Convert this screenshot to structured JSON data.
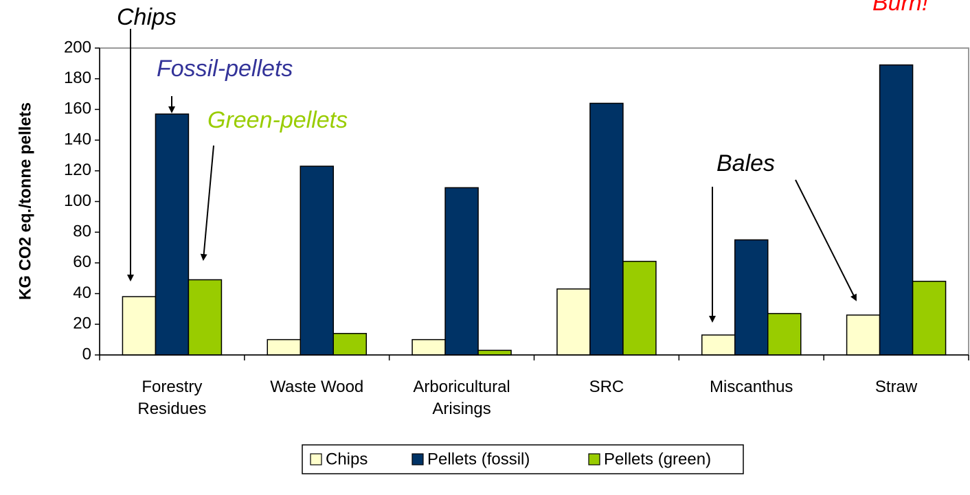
{
  "chart_data": {
    "type": "bar",
    "ylabel": "KG CO2 eq./tonne pellets",
    "categories": [
      "Forestry\nResidues",
      "Waste Wood",
      "Arboricultural\nArisings",
      "SRC",
      "Miscanthus",
      "Straw"
    ],
    "series": [
      {
        "name": "Chips",
        "color": "#ffffcc",
        "values": [
          38,
          10,
          10,
          43,
          13,
          26
        ]
      },
      {
        "name": "Pellets (fossil)",
        "color": "#003366",
        "values": [
          157,
          123,
          109,
          164,
          75,
          189
        ]
      },
      {
        "name": "Pellets (green)",
        "color": "#99cc00",
        "values": [
          49,
          14,
          3,
          61,
          27,
          48
        ]
      }
    ],
    "ylim": [
      0,
      200
    ],
    "yticks": [
      0,
      20,
      40,
      60,
      80,
      100,
      120,
      140,
      160,
      180,
      200
    ],
    "annotations": [
      {
        "text": "Chips",
        "color": "#000000"
      },
      {
        "text": "Fossil-pellets",
        "color": "#333399"
      },
      {
        "text": "Green-pellets",
        "color": "#99cc00"
      },
      {
        "text": "Bales",
        "color": "#000000"
      },
      {
        "text": "Burn!",
        "color": "#ff0000"
      }
    ]
  }
}
